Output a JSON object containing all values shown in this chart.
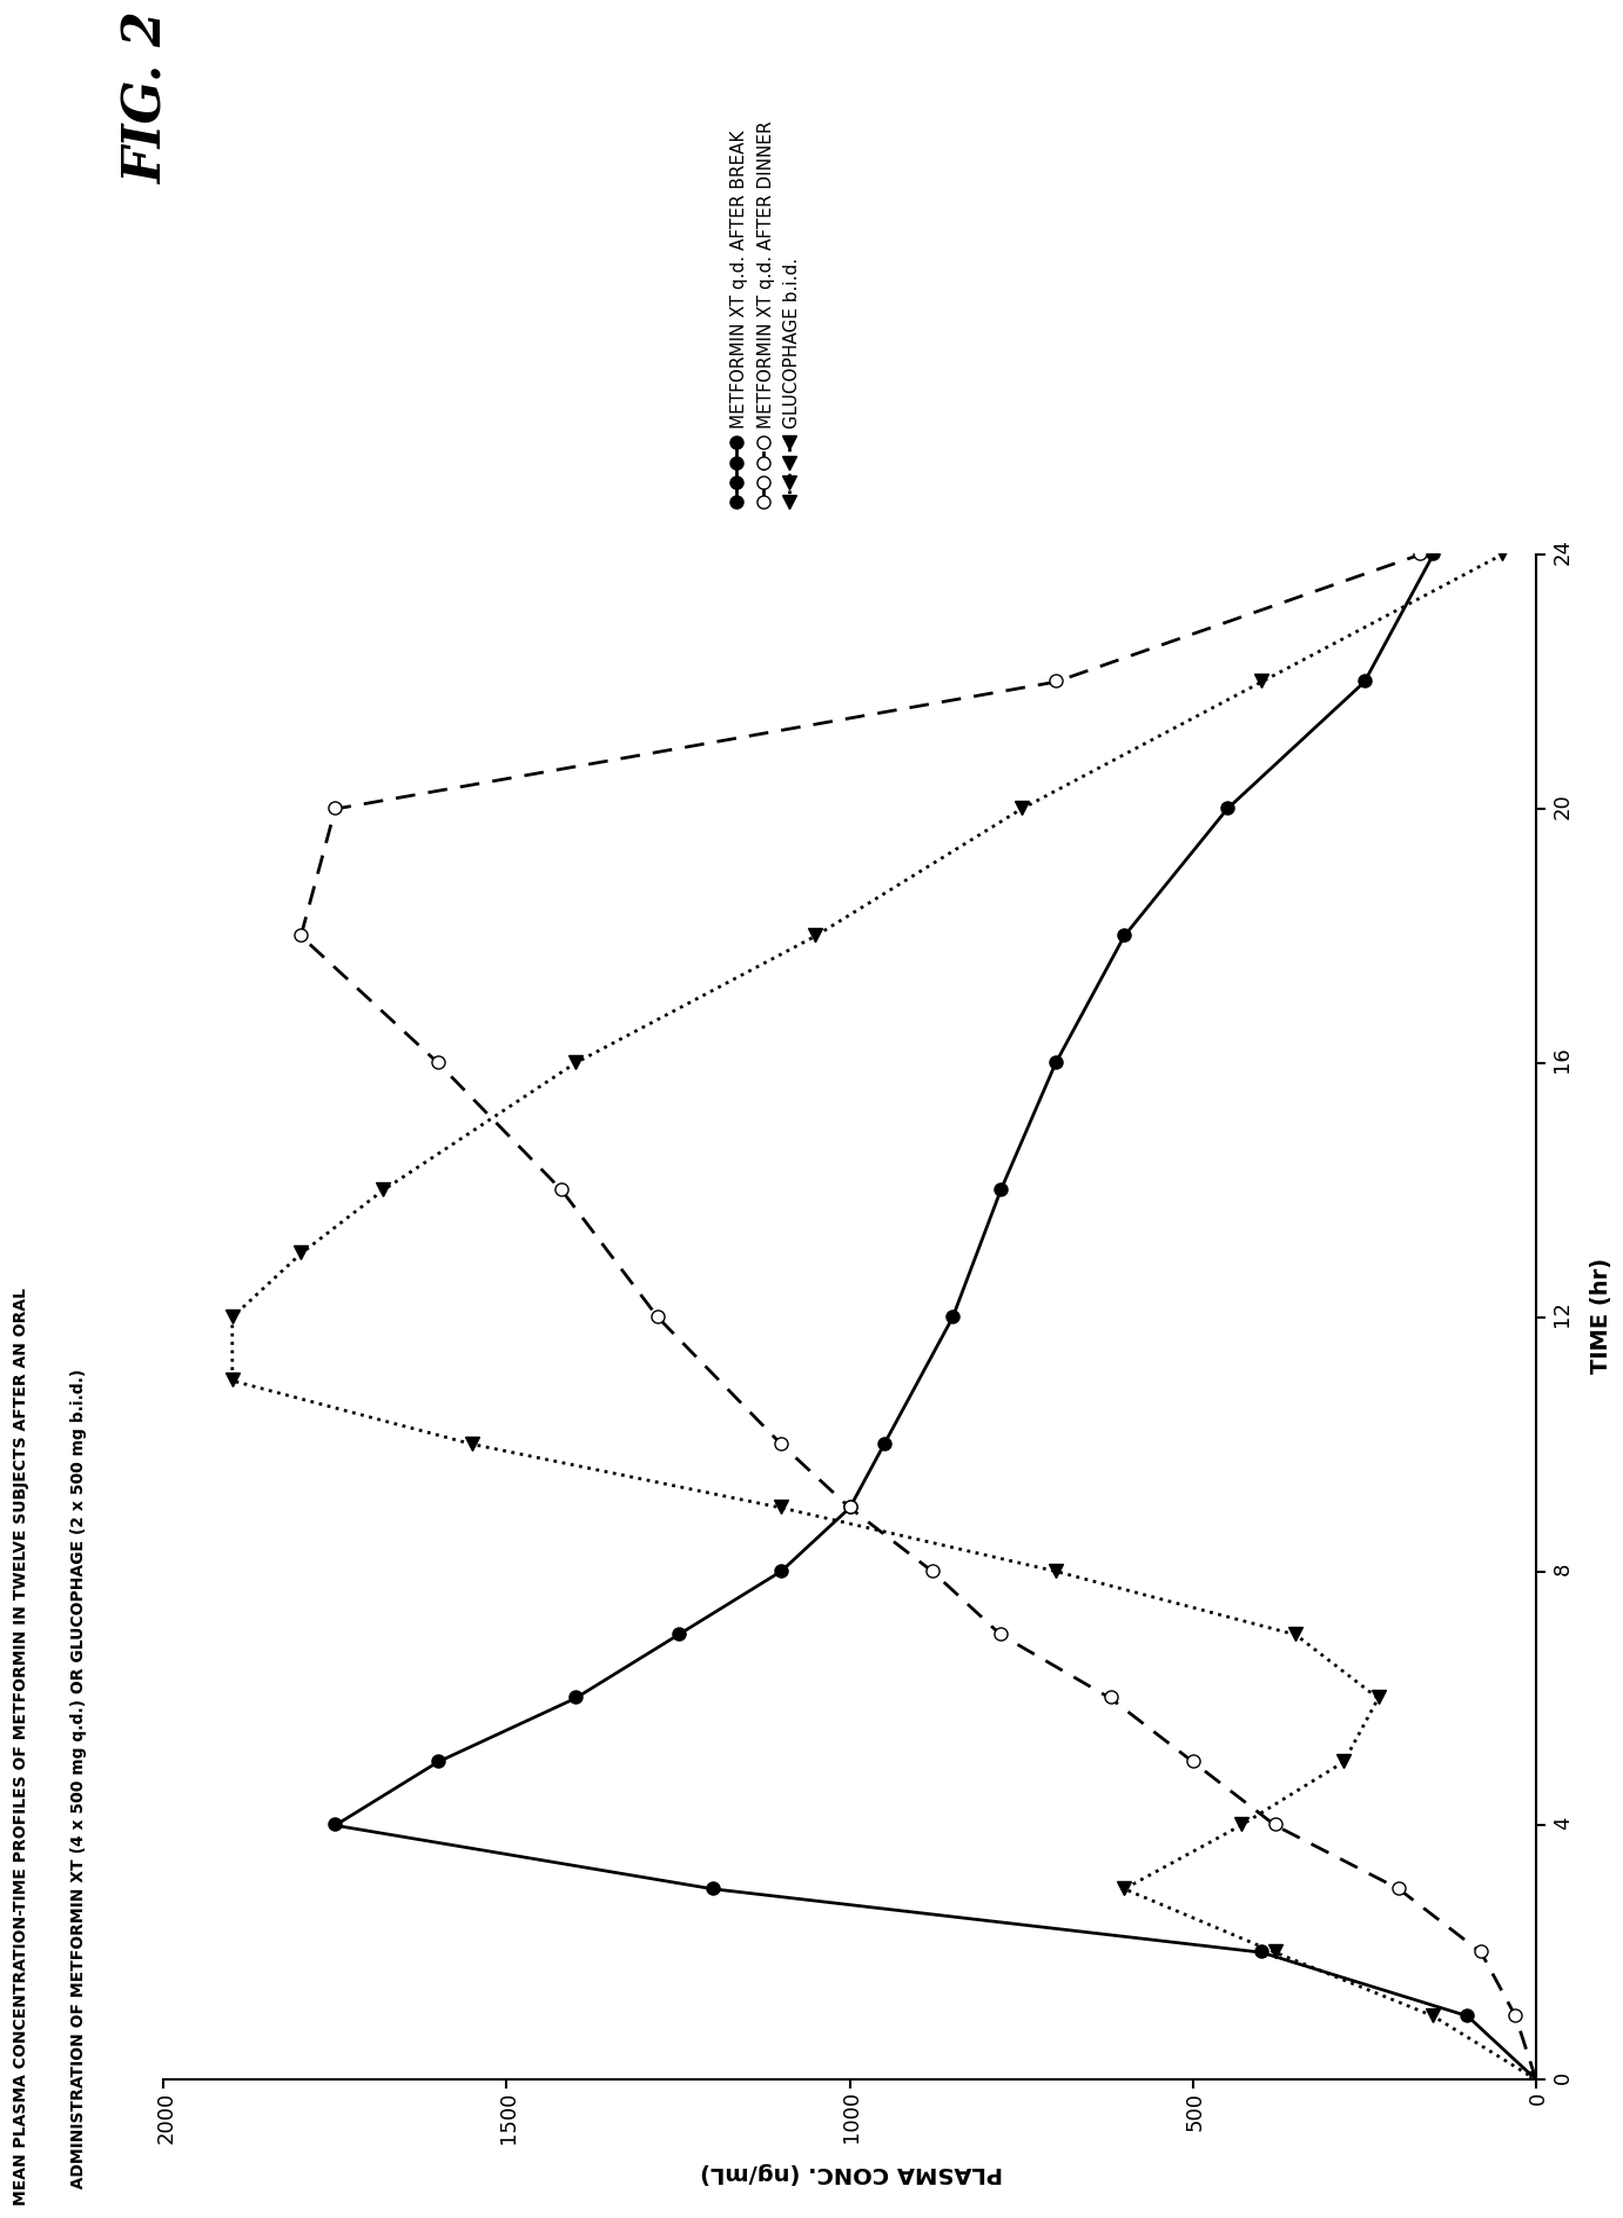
{
  "title_line1": "MEAN PLASMA CONCENTRATION-TIME PROFILES OF METFORMIN IN TWELVE SUBJECTS AFTER AN ORAL",
  "title_line2": "ADMINISTRATION OF METFORMIN XT (4 x 500 mg q.d.) OR GLUCOPHAGE (2 x 500 mg b.i.d.)",
  "xlabel": "TIME (hr)",
  "ylabel": "PLASMA CONC. (ng/mL)",
  "fig_label": "FIG. 2",
  "xlim": [
    0,
    24
  ],
  "ylim": [
    0,
    2000
  ],
  "xticks": [
    0,
    4,
    8,
    12,
    16,
    20,
    24
  ],
  "yticks": [
    0,
    500,
    1000,
    1500,
    2000
  ],
  "series1_label": "METFORMIN XT q.d. AFTER BREAK",
  "series1_x": [
    0,
    1,
    2,
    3,
    4,
    5,
    6,
    7,
    8,
    9,
    10,
    12,
    14,
    16,
    18,
    20,
    22,
    24
  ],
  "series1_y": [
    0,
    100,
    400,
    1200,
    1750,
    1600,
    1400,
    1250,
    1100,
    1000,
    950,
    850,
    780,
    700,
    600,
    450,
    250,
    150
  ],
  "series1_linestyle": "solid",
  "series1_marker": "o",
  "series1_markerfacecolor": "black",
  "series1_markersize": 8,
  "series1_color": "black",
  "series2_label": "METFORMIN XT q.d. AFTER DINNER",
  "series2_x": [
    0,
    1,
    2,
    3,
    4,
    5,
    6,
    7,
    8,
    9,
    10,
    12,
    14,
    16,
    18,
    20,
    22,
    24
  ],
  "series2_y": [
    0,
    30,
    80,
    200,
    380,
    500,
    620,
    780,
    880,
    1000,
    1100,
    1280,
    1420,
    1600,
    1800,
    1750,
    700,
    170
  ],
  "series2_linestyle": "dashed",
  "series2_marker": "o",
  "series2_markerfacecolor": "white",
  "series2_markersize": 8,
  "series2_color": "black",
  "series3_label": "GLUCOPHAGE b.i.d.",
  "series3_x": [
    0,
    1,
    2,
    3,
    4,
    5,
    6,
    7,
    8,
    9,
    10,
    11,
    12,
    13,
    14,
    16,
    18,
    20,
    22,
    24
  ],
  "series3_y": [
    0,
    150,
    380,
    600,
    430,
    280,
    230,
    350,
    700,
    1100,
    1550,
    1900,
    1900,
    1800,
    1680,
    1400,
    1050,
    750,
    400,
    50
  ],
  "series3_linestyle": "dotted",
  "series3_marker": "<",
  "series3_markerfacecolor": "black",
  "series3_markersize": 8,
  "series3_color": "black"
}
